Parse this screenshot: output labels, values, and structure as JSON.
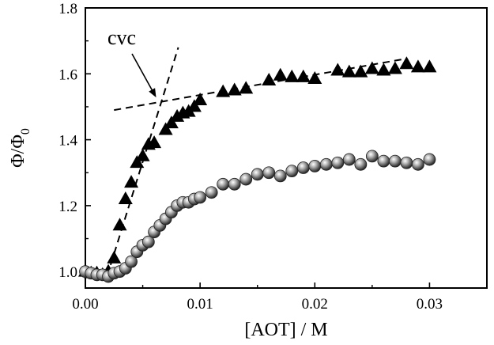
{
  "chart_data": {
    "type": "scatter",
    "title": "",
    "xlabel": "[AOT] / M",
    "ylabel": "Φ/Φ",
    "ylabel_subscript": "0",
    "xlim": [
      0.0,
      0.035
    ],
    "ylim": [
      0.95,
      1.8
    ],
    "x_ticks": [
      0.0,
      0.01,
      0.02,
      0.03
    ],
    "x_tick_labels": [
      "0.00",
      "0.01",
      "0.02",
      "0.03"
    ],
    "y_ticks": [
      1.0,
      1.2,
      1.4,
      1.6,
      1.8
    ],
    "y_tick_labels": [
      "1.0",
      "1.2",
      "1.4",
      "1.6",
      "1.8"
    ],
    "grid": false,
    "legend": "none",
    "annotation": {
      "text": "cvc",
      "arrow_to": [
        0.0063,
        1.52
      ]
    },
    "fit_lines": [
      {
        "style": "dashed",
        "x": [
          0.0022,
          0.0081
        ],
        "y": [
          1.02,
          1.68
        ]
      },
      {
        "style": "dashed",
        "x": [
          0.0025,
          0.0278
        ],
        "y": [
          1.49,
          1.645
        ]
      }
    ],
    "series": [
      {
        "marker": "triangle",
        "color": "#000000",
        "x": [
          0.0,
          0.0005,
          0.001,
          0.0015,
          0.002,
          0.0025,
          0.003,
          0.0035,
          0.004,
          0.0045,
          0.005,
          0.0055,
          0.006,
          0.007,
          0.0075,
          0.008,
          0.0085,
          0.009,
          0.0095,
          0.01,
          0.012,
          0.013,
          0.014,
          0.016,
          0.017,
          0.018,
          0.019,
          0.02,
          0.022,
          0.023,
          0.024,
          0.025,
          0.026,
          0.027,
          0.028,
          0.029,
          0.03
        ],
        "y": [
          1.0,
          0.995,
          0.995,
          0.99,
          1.0,
          1.04,
          1.14,
          1.22,
          1.27,
          1.33,
          1.35,
          1.385,
          1.39,
          1.43,
          1.45,
          1.47,
          1.48,
          1.485,
          1.5,
          1.52,
          1.545,
          1.55,
          1.555,
          1.58,
          1.595,
          1.59,
          1.59,
          1.585,
          1.61,
          1.605,
          1.605,
          1.615,
          1.61,
          1.615,
          1.63,
          1.62,
          1.62
        ]
      },
      {
        "marker": "sphere",
        "color": "#4a4a4a",
        "x": [
          0.0,
          0.0005,
          0.001,
          0.0015,
          0.002,
          0.0025,
          0.003,
          0.0035,
          0.004,
          0.0045,
          0.005,
          0.0055,
          0.006,
          0.0065,
          0.007,
          0.0075,
          0.008,
          0.0085,
          0.009,
          0.0095,
          0.01,
          0.011,
          0.012,
          0.013,
          0.014,
          0.015,
          0.016,
          0.017,
          0.018,
          0.019,
          0.02,
          0.021,
          0.022,
          0.023,
          0.024,
          0.025,
          0.026,
          0.027,
          0.028,
          0.029,
          0.03
        ],
        "y": [
          1.0,
          0.995,
          0.99,
          0.99,
          0.985,
          0.995,
          1.0,
          1.01,
          1.03,
          1.06,
          1.08,
          1.09,
          1.12,
          1.14,
          1.16,
          1.18,
          1.2,
          1.21,
          1.21,
          1.22,
          1.225,
          1.24,
          1.265,
          1.265,
          1.28,
          1.295,
          1.3,
          1.29,
          1.305,
          1.315,
          1.32,
          1.325,
          1.33,
          1.34,
          1.325,
          1.35,
          1.335,
          1.335,
          1.33,
          1.325,
          1.34
        ]
      }
    ]
  }
}
